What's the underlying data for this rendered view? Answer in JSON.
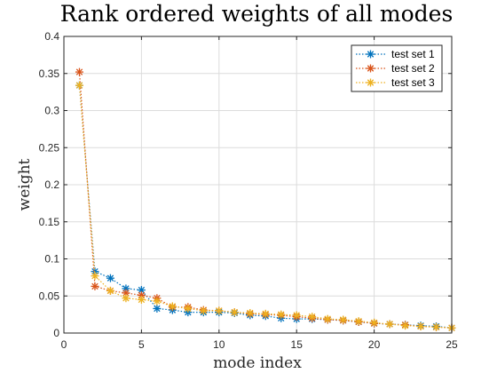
{
  "chart_data": {
    "type": "line",
    "title": "Rank ordered weights of all modes",
    "xlabel": "mode index",
    "ylabel": "weight",
    "xlim": [
      0,
      25
    ],
    "ylim": [
      0,
      0.4
    ],
    "xticks": [
      0,
      5,
      10,
      15,
      20,
      25
    ],
    "yticks": [
      0,
      0.05,
      0.1,
      0.15,
      0.2,
      0.25,
      0.3,
      0.35,
      0.4
    ],
    "xtick_labels": [
      "0",
      "5",
      "10",
      "15",
      "20",
      "25"
    ],
    "ytick_labels": [
      "0",
      "0.05",
      "0.1",
      "0.15",
      "0.2",
      "0.25",
      "0.3",
      "0.35",
      "0.4"
    ],
    "grid": true,
    "legend_position": "top-right",
    "line_style": "dotted",
    "marker": "asterisk",
    "x": [
      1,
      2,
      3,
      4,
      5,
      6,
      7,
      8,
      9,
      10,
      11,
      12,
      13,
      14,
      15,
      16,
      17,
      18,
      19,
      20,
      21,
      22,
      23,
      24,
      25
    ],
    "series": [
      {
        "name": "test set 1",
        "color": "#0072BD",
        "values": [
          0.334,
          0.083,
          0.074,
          0.06,
          0.058,
          0.033,
          0.031,
          0.028,
          0.028,
          0.028,
          0.027,
          0.024,
          0.023,
          0.02,
          0.019,
          0.019,
          0.018,
          0.017,
          0.015,
          0.013,
          0.012,
          0.011,
          0.01,
          0.009,
          0.007
        ]
      },
      {
        "name": "test set 2",
        "color": "#D95319",
        "values": [
          0.352,
          0.063,
          0.057,
          0.054,
          0.051,
          0.047,
          0.035,
          0.035,
          0.031,
          0.03,
          0.028,
          0.026,
          0.025,
          0.024,
          0.022,
          0.02,
          0.018,
          0.017,
          0.015,
          0.013,
          0.012,
          0.011,
          0.009,
          0.008,
          0.007
        ]
      },
      {
        "name": "test set 3",
        "color": "#EDB120",
        "values": [
          0.334,
          0.077,
          0.057,
          0.047,
          0.045,
          0.043,
          0.036,
          0.033,
          0.03,
          0.03,
          0.028,
          0.027,
          0.026,
          0.025,
          0.024,
          0.022,
          0.019,
          0.018,
          0.016,
          0.014,
          0.012,
          0.01,
          0.009,
          0.008,
          0.007
        ]
      }
    ]
  }
}
